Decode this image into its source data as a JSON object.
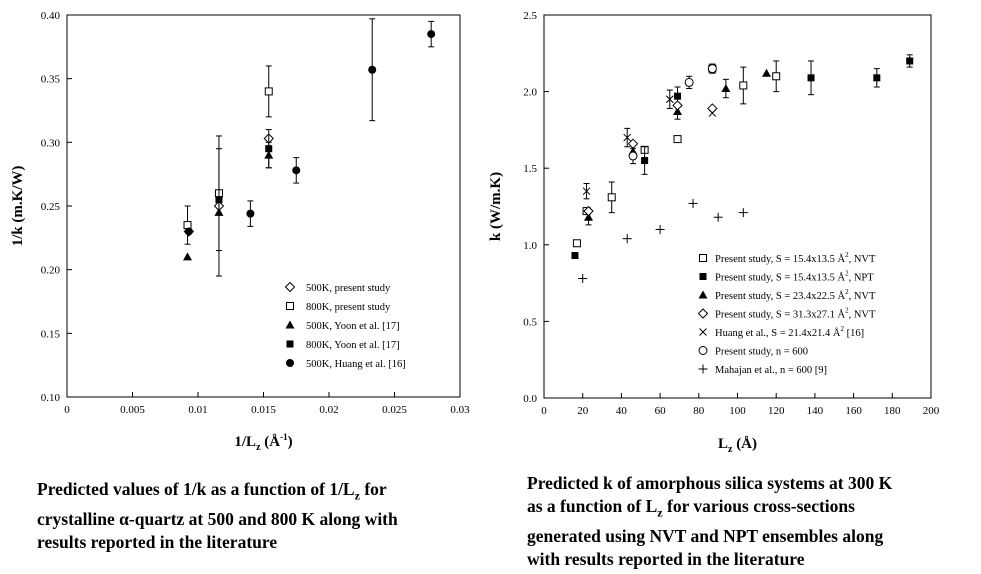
{
  "chart_data": [
    {
      "type": "scatter",
      "xlabel": "1/L",
      "xlabel_sub": "z",
      "xlabel_unit": "(Å",
      "xlabel_unit_sup": "-1",
      "xlabel_close": ")",
      "ylabel": "1/k (m.K/W)",
      "xlim": [
        0,
        0.03
      ],
      "ylim": [
        0.1,
        0.4
      ],
      "xticks": [
        "0",
        "0.005",
        "0.01",
        "0.015",
        "0.02",
        "0.025",
        "0.03"
      ],
      "yticks": [
        "0.10",
        "0.15",
        "0.20",
        "0.25",
        "0.30",
        "0.35",
        "0.40"
      ],
      "grid": false,
      "legend_position": "bottom-right",
      "series": [
        {
          "name": "500K, present study",
          "marker": "diamond-open",
          "points": [
            {
              "x": 0.0093,
              "y": 0.23
            },
            {
              "x": 0.0116,
              "y": 0.25
            },
            {
              "x": 0.0154,
              "y": 0.303
            }
          ]
        },
        {
          "name": "800K, present study",
          "marker": "square-open",
          "points": [
            {
              "x": 0.0092,
              "y": 0.235,
              "err": 0.015
            },
            {
              "x": 0.0116,
              "y": 0.26,
              "err": 0.045
            },
            {
              "x": 0.0154,
              "y": 0.34,
              "err": 0.02
            }
          ]
        },
        {
          "name": "500K, Yoon et al. [17]",
          "marker": "triangle-filled",
          "points": [
            {
              "x": 0.0092,
              "y": 0.21
            },
            {
              "x": 0.0116,
              "y": 0.245,
              "err": 0.05
            },
            {
              "x": 0.0154,
              "y": 0.29,
              "err": 0.01
            }
          ]
        },
        {
          "name": "800K, Yoon et al. [17]",
          "marker": "square-filled",
          "points": [
            {
              "x": 0.0116,
              "y": 0.255
            },
            {
              "x": 0.0154,
              "y": 0.295,
              "err": 0.015
            }
          ]
        },
        {
          "name": "500K, Huang et al. [16]",
          "marker": "circle-filled",
          "points": [
            {
              "x": 0.0093,
              "y": 0.23
            },
            {
              "x": 0.014,
              "y": 0.244,
              "err": 0.01
            },
            {
              "x": 0.0175,
              "y": 0.278,
              "err": 0.01
            },
            {
              "x": 0.0233,
              "y": 0.357,
              "err": 0.04
            },
            {
              "x": 0.0278,
              "y": 0.385,
              "err": 0.01
            }
          ]
        }
      ]
    },
    {
      "type": "scatter",
      "xlabel": "L",
      "xlabel_sub": "z",
      "xlabel_unit": "(Å)",
      "ylabel": "k (W/m.K)",
      "xlim": [
        0,
        200
      ],
      "ylim": [
        0,
        2.5
      ],
      "xticks": [
        "0",
        "20",
        "40",
        "60",
        "80",
        "100",
        "120",
        "140",
        "160",
        "180",
        "200"
      ],
      "yticks": [
        "0.0",
        "0.5",
        "1.0",
        "1.5",
        "2.0",
        "2.5"
      ],
      "grid": false,
      "legend_position": "bottom-right",
      "series": [
        {
          "name": "Present study, S = 15.4x13.5 Å², NVT",
          "legend_text": "Present study, S = 15.4x13.5 Å",
          "legend_tail": ", NVT",
          "marker": "square-open",
          "points": [
            {
              "x": 17,
              "y": 1.01
            },
            {
              "x": 22,
              "y": 1.22
            },
            {
              "x": 35,
              "y": 1.31,
              "err": 0.1
            },
            {
              "x": 52,
              "y": 1.62
            },
            {
              "x": 69,
              "y": 1.69
            },
            {
              "x": 87,
              "y": 2.15
            },
            {
              "x": 103,
              "y": 2.04,
              "err": 0.12
            },
            {
              "x": 120,
              "y": 2.1,
              "err": 0.1
            }
          ]
        },
        {
          "name": "Present study, S = 15.4x13.5 Å², NPT",
          "legend_text": "Present study, S = 15.4x13.5 Å",
          "legend_tail": ", NPT",
          "marker": "square-filled",
          "points": [
            {
              "x": 16,
              "y": 0.93
            },
            {
              "x": 52,
              "y": 1.55,
              "err": 0.09
            },
            {
              "x": 69,
              "y": 1.97,
              "err": 0.06
            },
            {
              "x": 138,
              "y": 2.09,
              "err": 0.11
            },
            {
              "x": 172,
              "y": 2.09,
              "err": 0.06
            },
            {
              "x": 189,
              "y": 2.2,
              "err": 0.04
            }
          ]
        },
        {
          "name": "Present study, S = 23.4x22.5 Å², NVT",
          "legend_text": "Present study, S = 23.4x22.5 Å",
          "legend_tail": ", NVT",
          "marker": "triangle-filled",
          "points": [
            {
              "x": 23,
              "y": 1.18,
              "err": 0.05
            },
            {
              "x": 46,
              "y": 1.61,
              "err": 0.05
            },
            {
              "x": 69,
              "y": 1.87,
              "err": 0.05
            },
            {
              "x": 94,
              "y": 2.02,
              "err": 0.06
            },
            {
              "x": 115,
              "y": 2.12
            }
          ]
        },
        {
          "name": "Present study, S = 31.3x27.1 Å², NVT",
          "legend_text": "Present study, S = 31.3x27.1 Å",
          "legend_tail": ", NVT",
          "marker": "diamond-open",
          "points": [
            {
              "x": 23,
              "y": 1.22
            },
            {
              "x": 46,
              "y": 1.66
            },
            {
              "x": 69,
              "y": 1.91
            },
            {
              "x": 87,
              "y": 1.89
            }
          ]
        },
        {
          "name": "Huang et al., S = 21.4x21.4 Å² [16]",
          "legend_text": "Huang et al., S = 21.4x21.4 Å",
          "legend_tail": " [16]",
          "marker": "cross-x",
          "points": [
            {
              "x": 22,
              "y": 1.35,
              "err": 0.05
            },
            {
              "x": 43,
              "y": 1.7,
              "err": 0.06
            },
            {
              "x": 65,
              "y": 1.95,
              "err": 0.06
            },
            {
              "x": 87,
              "y": 1.86
            }
          ]
        },
        {
          "name": "Present study, n = 600",
          "legend_text": "Present study, n = 600",
          "marker": "circle-open",
          "points": [
            {
              "x": 46,
              "y": 1.58,
              "err": 0.05
            },
            {
              "x": 75,
              "y": 2.06,
              "err": 0.04
            },
            {
              "x": 87,
              "y": 2.15,
              "err": 0.03
            }
          ]
        },
        {
          "name": "Mahajan et al., n = 600 [9]",
          "legend_text": "Mahajan et al., n = 600 [9]",
          "marker": "plus",
          "points": [
            {
              "x": 20,
              "y": 0.78
            },
            {
              "x": 43,
              "y": 1.04
            },
            {
              "x": 60,
              "y": 1.1
            },
            {
              "x": 77,
              "y": 1.27
            },
            {
              "x": 90,
              "y": 1.18
            },
            {
              "x": 103,
              "y": 1.21
            }
          ]
        }
      ]
    }
  ],
  "captions": {
    "left": [
      "Predicted values of 1/k as a function of 1/L",
      "crystalline α-quartz at 500 and 800 K along with",
      "results reported in the literature"
    ],
    "left_sub": "z",
    "left_tail": " for",
    "right": [
      "Predicted k of amorphous silica systems at 300 K",
      "as a function of L",
      "generated using NVT and NPT ensembles along",
      "with results reported in the literature"
    ],
    "right_sub": "z",
    "right_tail": " for various cross-sections"
  }
}
